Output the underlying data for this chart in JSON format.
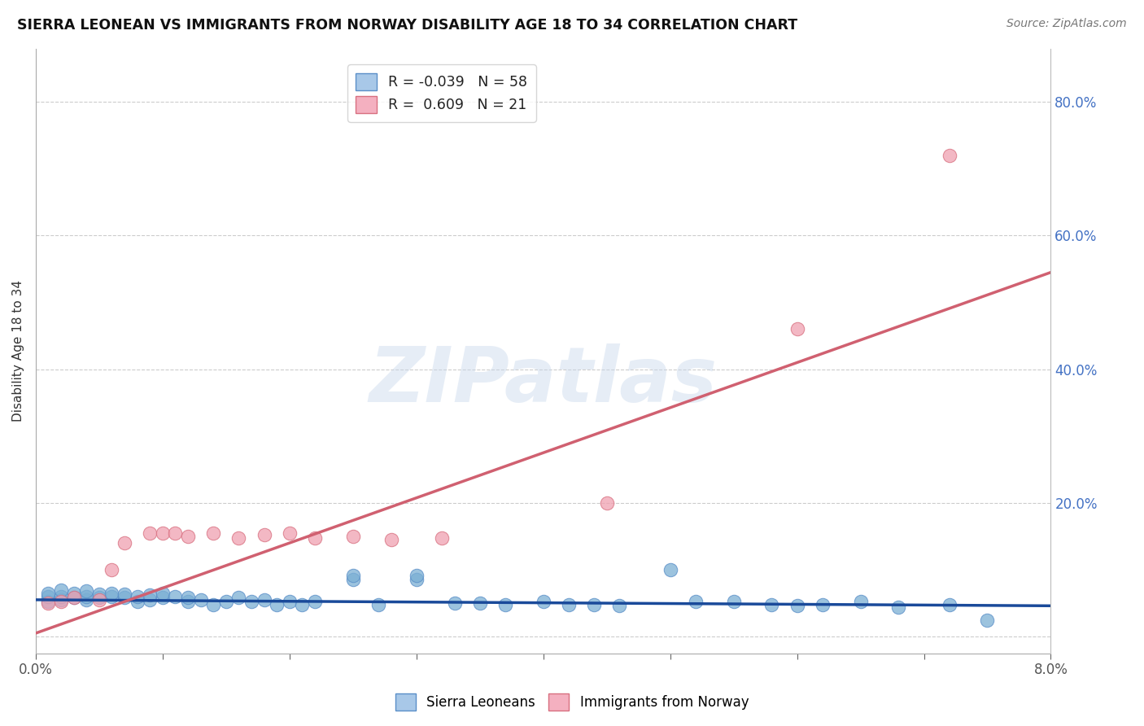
{
  "title": "SIERRA LEONEAN VS IMMIGRANTS FROM NORWAY DISABILITY AGE 18 TO 34 CORRELATION CHART",
  "source": "Source: ZipAtlas.com",
  "ylabel": "Disability Age 18 to 34",
  "xlim": [
    0.0,
    0.08
  ],
  "ylim": [
    -0.025,
    0.88
  ],
  "blue_color": "#7bafd4",
  "blue_edge": "#5b8fc8",
  "pink_color": "#f0a0b0",
  "pink_edge": "#d87080",
  "trendline_blue_y0": 0.055,
  "trendline_blue_y1": 0.046,
  "trendline_pink_y0": 0.005,
  "trendline_pink_y1": 0.545,
  "watermark_text": "ZIPatlas",
  "legend1_label": "R = -0.039   N = 58",
  "legend2_label": "R =  0.609   N = 21",
  "bottom_legend1": "Sierra Leoneans",
  "bottom_legend2": "Immigrants from Norway",
  "blue_x": [
    0.001,
    0.001,
    0.001,
    0.002,
    0.002,
    0.002,
    0.003,
    0.003,
    0.004,
    0.004,
    0.004,
    0.005,
    0.005,
    0.006,
    0.006,
    0.007,
    0.007,
    0.008,
    0.008,
    0.009,
    0.009,
    0.01,
    0.01,
    0.011,
    0.012,
    0.012,
    0.013,
    0.014,
    0.015,
    0.016,
    0.017,
    0.018,
    0.019,
    0.02,
    0.021,
    0.022,
    0.025,
    0.025,
    0.027,
    0.03,
    0.03,
    0.033,
    0.035,
    0.037,
    0.04,
    0.042,
    0.044,
    0.046,
    0.05,
    0.052,
    0.055,
    0.058,
    0.06,
    0.062,
    0.065,
    0.068,
    0.072,
    0.075
  ],
  "blue_y": [
    0.052,
    0.06,
    0.065,
    0.055,
    0.06,
    0.07,
    0.058,
    0.065,
    0.055,
    0.06,
    0.068,
    0.058,
    0.063,
    0.06,
    0.065,
    0.058,
    0.063,
    0.052,
    0.06,
    0.055,
    0.062,
    0.058,
    0.065,
    0.06,
    0.052,
    0.058,
    0.055,
    0.048,
    0.052,
    0.058,
    0.052,
    0.055,
    0.048,
    0.052,
    0.048,
    0.052,
    0.085,
    0.092,
    0.048,
    0.085,
    0.092,
    0.05,
    0.05,
    0.048,
    0.052,
    0.048,
    0.048,
    0.046,
    0.1,
    0.052,
    0.052,
    0.048,
    0.046,
    0.048,
    0.052,
    0.044,
    0.048,
    0.025
  ],
  "pink_x": [
    0.001,
    0.002,
    0.003,
    0.005,
    0.006,
    0.007,
    0.009,
    0.01,
    0.011,
    0.012,
    0.014,
    0.016,
    0.018,
    0.02,
    0.022,
    0.025,
    0.028,
    0.032,
    0.045,
    0.06,
    0.072
  ],
  "pink_y": [
    0.05,
    0.052,
    0.058,
    0.055,
    0.1,
    0.14,
    0.155,
    0.155,
    0.155,
    0.15,
    0.155,
    0.148,
    0.152,
    0.155,
    0.148,
    0.15,
    0.145,
    0.148,
    0.2,
    0.46,
    0.72
  ]
}
